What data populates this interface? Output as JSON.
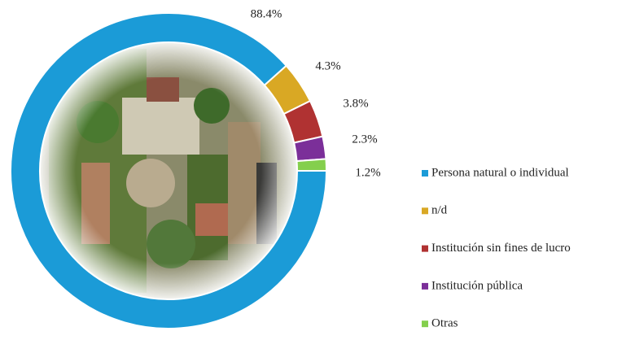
{
  "chart_data": {
    "type": "donut",
    "categories": [
      "Persona natural o individual",
      "n/d",
      "Institución sin fines de lucro",
      "Institución pública",
      "Otras"
    ],
    "values": [
      88.4,
      4.3,
      3.8,
      2.3,
      1.2
    ],
    "value_labels": [
      "88.4%",
      "4.3%",
      "3.8%",
      "2.3%",
      "1.2%"
    ],
    "colors": [
      "#1b9bd7",
      "#d9a824",
      "#b03232",
      "#7b2f99",
      "#84cf4d"
    ],
    "legend": "right"
  }
}
